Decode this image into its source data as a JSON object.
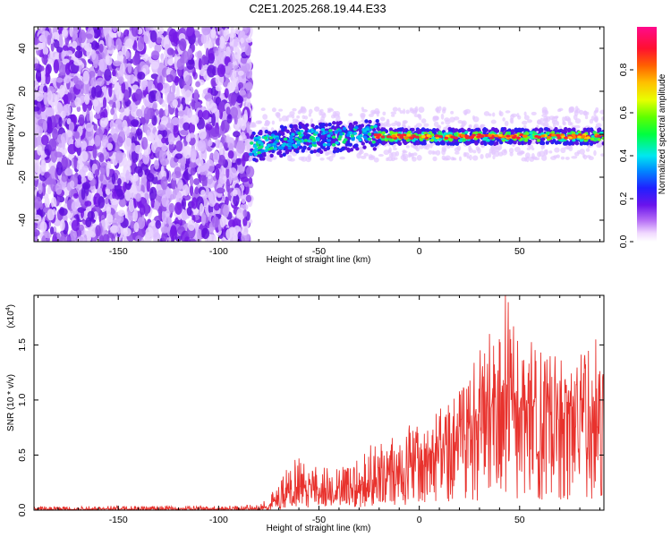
{
  "figure": {
    "title": "C2E1.2025.268.19.44.E33"
  },
  "chart_data": [
    {
      "type": "heatmap",
      "title": "C2E1.2025.268.19.44.E33",
      "xlabel": "Height of straight line (km)",
      "ylabel": "Frequency (Hz)",
      "xlim": [
        -192,
        92
      ],
      "ylim": [
        -50,
        50
      ],
      "xticks": [
        -150,
        -100,
        -50,
        0,
        50
      ],
      "xtick_labels": [
        "-150",
        "-100",
        "-50",
        "0",
        "50"
      ],
      "yticks": [
        -40,
        -20,
        0,
        20,
        40
      ],
      "ytick_labels": [
        "-40",
        "-20",
        "0",
        "20",
        "40"
      ],
      "colorbar": {
        "label": "Normalized spectral amplitude",
        "range": [
          0,
          1
        ],
        "ticks": [
          0.0,
          0.2,
          0.4,
          0.6,
          0.8
        ],
        "tick_labels": [
          "0.0",
          "0.2",
          "0.4",
          "0.6",
          "0.8"
        ],
        "colormap": "rainbow (white → purple → blue → cyan → green → yellow → orange → red → magenta)"
      },
      "regions": [
        {
          "x_range": [
            -192,
            -84
          ],
          "description": "broadband noise, amplitude ~0.1-0.2, spread over full frequency range"
        },
        {
          "x_range": [
            -84,
            -20
          ],
          "description": "signal band near 0 Hz, width ~10 Hz, amplitude ~0.2-0.5, drifting from about -6 Hz up to 0 Hz"
        },
        {
          "x_range": [
            -20,
            92
          ],
          "description": "narrow line at about -1 Hz, amplitude ~0.6-0.9"
        }
      ],
      "colors": {
        "noise": "#7a1ee6",
        "signal_peak": "#e8283c"
      }
    },
    {
      "type": "line",
      "xlabel": "Height of straight line (km)",
      "ylabel": "SNR (10 * v/v)",
      "y_scale_label": "(x10",
      "y_scale_exponent": "4",
      "xlim": [
        -192,
        92
      ],
      "ylim": [
        0,
        1.95
      ],
      "xticks": [
        -150,
        -100,
        -50,
        0,
        50
      ],
      "xtick_labels": [
        "-150",
        "-100",
        "-50",
        "0",
        "50"
      ],
      "yticks": [
        0.0,
        0.5,
        1.0,
        1.5
      ],
      "ytick_labels": [
        "0.0",
        "0.5",
        "1.0",
        "1.5"
      ],
      "series": [
        {
          "name": "SNR",
          "color": "#e8322d",
          "x": [
            -190,
            -150,
            -100,
            -80,
            -75,
            -70,
            -65,
            -60,
            -55,
            -50,
            -45,
            -40,
            -35,
            -30,
            -25,
            -20,
            -15,
            -10,
            -5,
            0,
            5,
            10,
            15,
            20,
            25,
            30,
            35,
            40,
            45,
            50,
            55,
            60,
            65,
            70,
            75,
            80,
            85,
            90
          ],
          "base": [
            0.01,
            0.01,
            0.01,
            0.015,
            0.04,
            0.1,
            0.16,
            0.2,
            0.22,
            0.19,
            0.18,
            0.17,
            0.2,
            0.22,
            0.26,
            0.3,
            0.34,
            0.36,
            0.38,
            0.42,
            0.5,
            0.55,
            0.58,
            0.66,
            0.78,
            0.88,
            0.92,
            0.95,
            1.0,
            0.98,
            0.95,
            0.93,
            0.95,
            0.94,
            0.93,
            0.95,
            0.97,
            1.0
          ],
          "envelope_max": [
            0.04,
            0.04,
            0.04,
            0.05,
            0.12,
            0.28,
            0.42,
            0.5,
            0.48,
            0.42,
            0.4,
            0.38,
            0.45,
            0.5,
            0.62,
            0.66,
            0.72,
            0.66,
            0.8,
            0.75,
            0.82,
            0.95,
            0.96,
            1.1,
            1.25,
            1.5,
            1.6,
            1.6,
            1.95,
            1.45,
            1.55,
            1.5,
            1.45,
            1.4,
            1.35,
            1.4,
            1.55,
            1.3
          ],
          "peaks": [
            {
              "x": 43,
              "y": 1.95
            },
            {
              "x": 88,
              "y": 1.55
            },
            {
              "x": 35,
              "y": 1.6
            }
          ]
        }
      ]
    }
  ]
}
